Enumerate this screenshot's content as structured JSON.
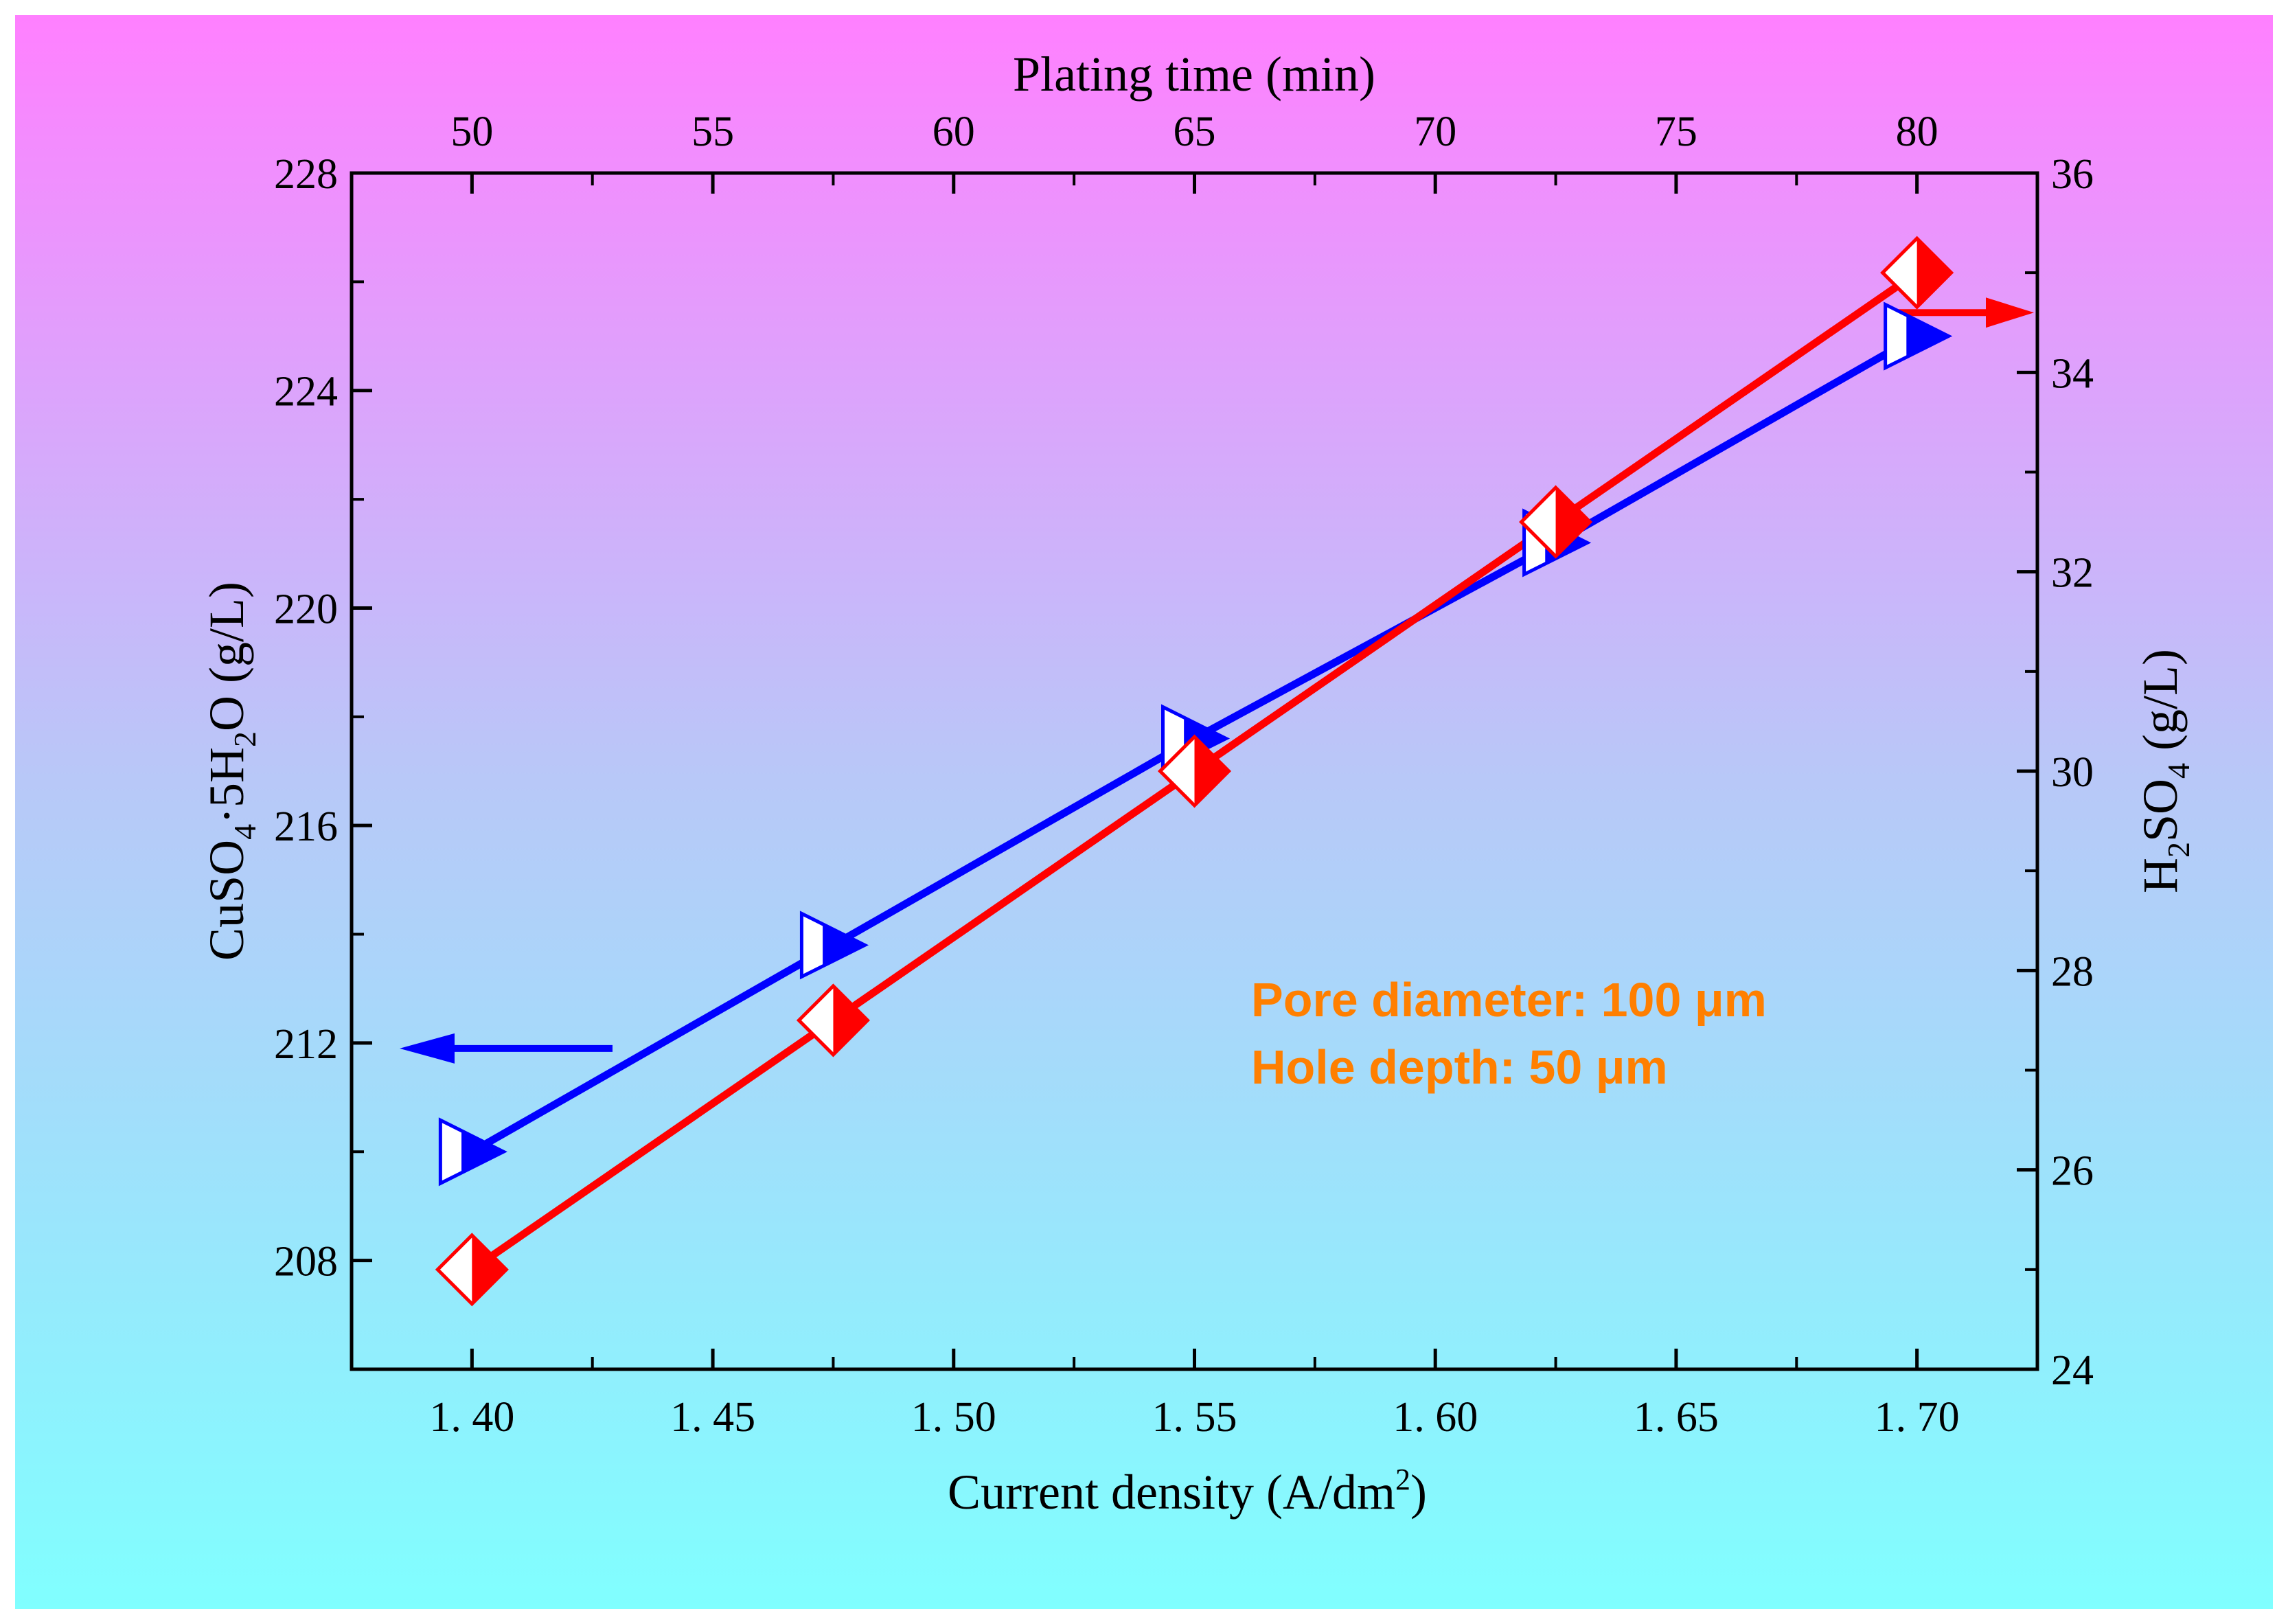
{
  "chart_data": {
    "type": "line",
    "title": "",
    "x_bottom": {
      "label": "Current density (A/dm",
      "label_sup": "2",
      "label_close": ")",
      "range": [
        1.375,
        1.725
      ],
      "ticks": [
        1.4,
        1.45,
        1.5,
        1.55,
        1.6,
        1.65,
        1.7
      ],
      "tick_labels": [
        "1. 40",
        "1. 45",
        "1. 50",
        "1. 55",
        "1. 60",
        "1. 65",
        "1. 70"
      ]
    },
    "x_top": {
      "label": "Plating time (min)",
      "ticks": [
        50,
        55,
        60,
        65,
        70,
        75,
        80
      ],
      "tick_labels": [
        "50",
        "55",
        "60",
        "65",
        "70",
        "75",
        "80"
      ]
    },
    "y_left": {
      "label_parts": [
        "CuSO",
        "4",
        "·5H",
        "2",
        "O (g/L)"
      ],
      "range": [
        206,
        228
      ],
      "ticks": [
        208,
        212,
        216,
        220,
        224,
        228
      ],
      "tick_labels": [
        "208",
        "212",
        "216",
        "220",
        "224",
        "228"
      ]
    },
    "y_right": {
      "label_parts": [
        "H",
        "2",
        "SO",
        "4",
        " (g/L)"
      ],
      "range": [
        24,
        36
      ],
      "ticks": [
        24,
        26,
        28,
        30,
        32,
        34,
        36
      ],
      "tick_labels": [
        "24",
        "26",
        "28",
        "30",
        "32",
        "34",
        "36"
      ]
    },
    "series": [
      {
        "name": "CuSO4·5H2O",
        "axis": "left",
        "color": "#0000ff",
        "marker": "triangle-right",
        "x": [
          1.4,
          1.475,
          1.55,
          1.625,
          1.7
        ],
        "values": [
          210,
          213.8,
          217.6,
          221.2,
          225
        ]
      },
      {
        "name": "H2SO4",
        "axis": "right",
        "color": "#ff0000",
        "marker": "diamond",
        "x": [
          1.4,
          1.475,
          1.55,
          1.625,
          1.7
        ],
        "values": [
          25,
          27.5,
          30,
          32.5,
          35
        ]
      }
    ],
    "annotations": [
      "Pore diameter: 100 μm",
      "Hole depth: 50 μm"
    ]
  }
}
